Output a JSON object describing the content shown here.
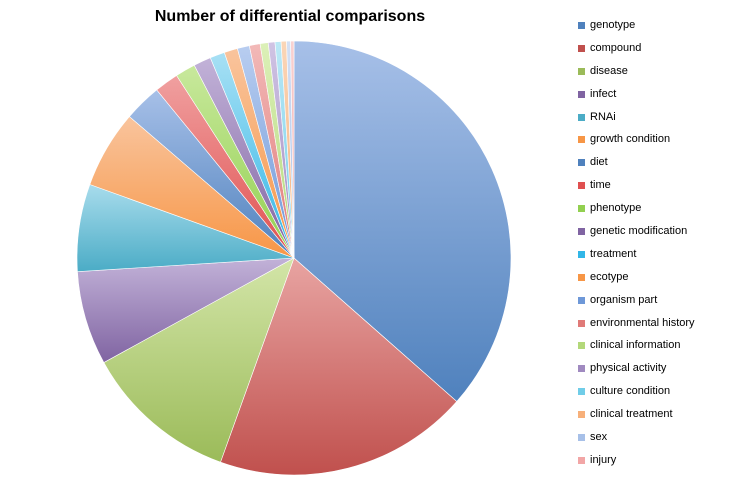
{
  "chart_data": {
    "type": "pie",
    "title": "Number of differential comparisons",
    "legend_position": "right",
    "slices": [
      {
        "label": "genotype",
        "value": 36.5,
        "color": "#4f81bd",
        "light": "#a7c0e8"
      },
      {
        "label": "compound",
        "value": 19.0,
        "color": "#c0504d",
        "light": "#e8a4a2"
      },
      {
        "label": "disease",
        "value": 11.5,
        "color": "#9bbb59",
        "light": "#d3e5a8"
      },
      {
        "label": "infect",
        "value": 7.0,
        "color": "#8064a2",
        "light": "#c2b2d8"
      },
      {
        "label": "RNAi",
        "value": 6.5,
        "color": "#4bacc6",
        "light": "#a8dcec"
      },
      {
        "label": "growth condition",
        "value": 5.8,
        "color": "#f79646",
        "light": "#f9c49d"
      },
      {
        "label": "diet",
        "value": 2.8,
        "color": "#4f81bd",
        "light": "#a7c0e8"
      },
      {
        "label": "time",
        "value": 1.8,
        "color": "#e05050",
        "light": "#f0a0a0"
      },
      {
        "label": "phenotype",
        "value": 1.5,
        "color": "#92d050",
        "light": "#c8e89c"
      },
      {
        "label": "genetic modification",
        "value": 1.3,
        "color": "#8064a2",
        "light": "#c2b2d8"
      },
      {
        "label": "treatment",
        "value": 1.1,
        "color": "#31b6e7",
        "light": "#a8e0f4"
      },
      {
        "label": "ecotype",
        "value": 1.0,
        "color": "#f79646",
        "light": "#f9c49d"
      },
      {
        "label": "organism part",
        "value": 0.9,
        "color": "#6e98d8",
        "light": "#b8cdf0"
      },
      {
        "label": "environmental history",
        "value": 0.8,
        "color": "#e07a78",
        "light": "#f2b9b8"
      },
      {
        "label": "clinical information",
        "value": 0.6,
        "color": "#b3d87a",
        "light": "#dcf0b8"
      },
      {
        "label": "physical activity",
        "value": 0.5,
        "color": "#a08ac0",
        "light": "#d0c4e4"
      },
      {
        "label": "culture condition",
        "value": 0.45,
        "color": "#70cde8",
        "light": "#bce8f6"
      },
      {
        "label": "clinical treatment",
        "value": 0.4,
        "color": "#f7b07a",
        "light": "#fad6b8"
      },
      {
        "label": "sex",
        "value": 0.3,
        "color": "#a7c0e8",
        "light": "#d4e0f4"
      },
      {
        "label": "injury",
        "value": 0.25,
        "color": "#f2a6a6",
        "light": "#f8d2d2"
      }
    ]
  }
}
